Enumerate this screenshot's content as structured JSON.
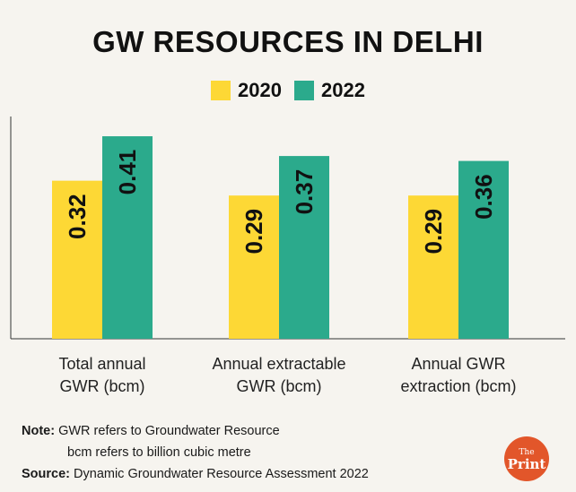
{
  "chart_data": {
    "type": "bar",
    "title": "GW RESOURCES IN DELHI",
    "categories": [
      [
        "Total annual",
        "GWR (bcm)"
      ],
      [
        "Annual extractable",
        "GWR (bcm)"
      ],
      [
        "Annual GWR",
        "extraction (bcm)"
      ]
    ],
    "series": [
      {
        "name": "2020",
        "color": "#fdd835",
        "values": [
          0.32,
          0.29,
          0.29
        ],
        "labels": [
          "0.32",
          "0.29",
          "0.29"
        ]
      },
      {
        "name": "2022",
        "color": "#2baa8c",
        "values": [
          0.41,
          0.37,
          0.36
        ],
        "labels": [
          "0.41",
          "0.37",
          "0.36"
        ]
      }
    ],
    "ylim": [
      0,
      0.45
    ],
    "xlabel": "",
    "ylabel": "",
    "legend": "top-center",
    "grid": false
  },
  "notes": {
    "note_label": "Note:",
    "note_line1": "GWR refers to Groundwater Resource",
    "note_line2": "bcm refers to billion cubic metre",
    "source_label": "Source:",
    "source_text": "Dynamic Groundwater Resource Assessment 2022"
  },
  "logo": {
    "the": "The",
    "print": "Print",
    "color": "#e2562a"
  }
}
